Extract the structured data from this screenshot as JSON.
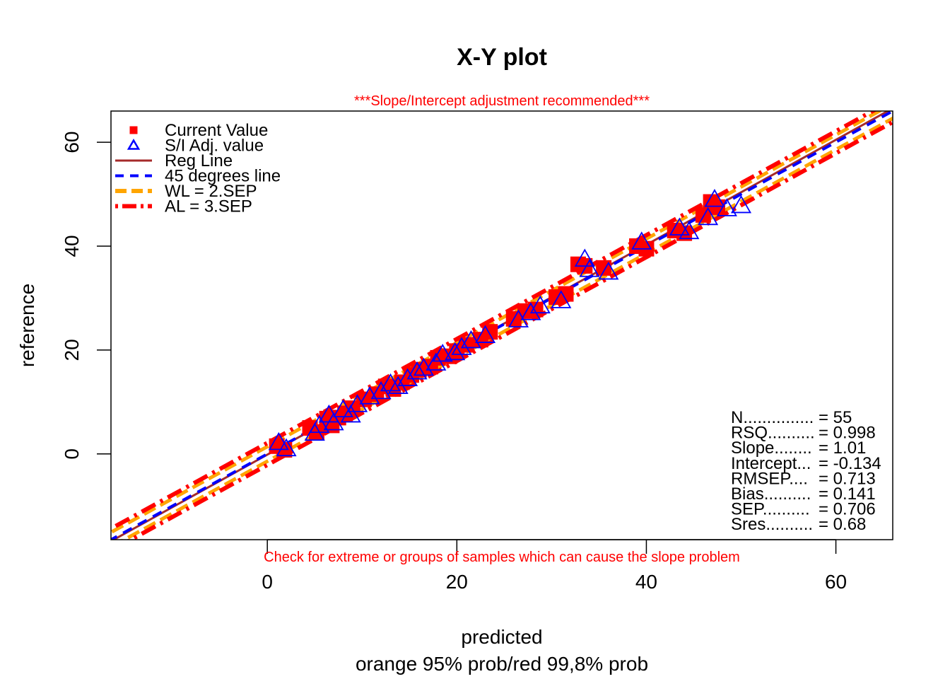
{
  "chart_data": {
    "type": "scatter",
    "title": "X-Y plot",
    "subtitle_top": "***Slope/Intercept adjustment recommended***",
    "subtitle_bottom": "Check for extreme or groups of samples which can cause the slope problem",
    "xlabel": "predicted",
    "xlabel_line2": "orange 95% prob/red 99,8% prob",
    "ylabel": "reference",
    "xlim": [
      -16.5,
      66
    ],
    "ylim": [
      -16.5,
      66
    ],
    "x_ticks": [
      0,
      20,
      40,
      60
    ],
    "y_ticks": [
      0,
      20,
      40,
      60
    ],
    "grid": false,
    "legend_position": "top-left",
    "legend": [
      {
        "label": "Current Value",
        "kind": "square",
        "color": "#ff0000"
      },
      {
        "label": "S/I Adj. value",
        "kind": "triangle",
        "color": "#0000ff"
      },
      {
        "label": "Reg Line",
        "kind": "solid",
        "color": "#a52a2a"
      },
      {
        "label": "45 degrees line",
        "kind": "dashed",
        "color": "#0000ff"
      },
      {
        "label": "WL = 2.SEP",
        "kind": "dashed-thick",
        "color": "#ffa500"
      },
      {
        "label": "AL = 3.SEP",
        "kind": "dotdash-thick",
        "color": "#ff0000"
      }
    ],
    "lines": {
      "reg": {
        "slope": 1.01,
        "intercept": -0.134,
        "color": "#a52a2a"
      },
      "deg45": {
        "slope": 1,
        "intercept": 0,
        "color": "#0000ff"
      },
      "wl_offset": 1.412,
      "al_offset": 2.118,
      "wl_color": "#ffa500",
      "al_color": "#ff0000"
    },
    "stats": [
      {
        "label": "N............... ",
        "value": "= 55"
      },
      {
        "label": "RSQ.......... ",
        "value": "= 0.998"
      },
      {
        "label": "Slope........ ",
        "value": "= 1.01"
      },
      {
        "label": "Intercept... ",
        "value": "= -0.134"
      },
      {
        "label": "RMSEP.... ",
        "value": "= 0.713"
      },
      {
        "label": "Bias.......... ",
        "value": "= 0.141"
      },
      {
        "label": "SEP.......... ",
        "value": "= 0.706"
      },
      {
        "label": "Sres.......... ",
        "value": "= 0.68"
      }
    ],
    "series": [
      {
        "name": "Current Value",
        "marker": "square",
        "color": "#ff0000",
        "points": [
          [
            1.0,
            1.5
          ],
          [
            1.8,
            0.8
          ],
          [
            4.5,
            5.0
          ],
          [
            5.2,
            4.2
          ],
          [
            6.3,
            6.8
          ],
          [
            6.8,
            5.5
          ],
          [
            7.5,
            7.0
          ],
          [
            8.2,
            7.8
          ],
          [
            9.0,
            8.8
          ],
          [
            10.2,
            10.5
          ],
          [
            11.5,
            11.5
          ],
          [
            12.5,
            13.0
          ],
          [
            13.3,
            12.5
          ],
          [
            14.2,
            13.8
          ],
          [
            15.2,
            15.2
          ],
          [
            16.0,
            16.2
          ],
          [
            17.2,
            16.8
          ],
          [
            18.0,
            18.5
          ],
          [
            19.2,
            18.8
          ],
          [
            20.0,
            19.8
          ],
          [
            21.0,
            21.0
          ],
          [
            22.5,
            22.0
          ],
          [
            23.5,
            23.5
          ],
          [
            26.0,
            26.0
          ],
          [
            27.2,
            27.5
          ],
          [
            28.3,
            27.8
          ],
          [
            30.5,
            30.2
          ],
          [
            31.5,
            30.8
          ],
          [
            32.8,
            36.5
          ],
          [
            33.5,
            36.2
          ],
          [
            35.5,
            35.8
          ],
          [
            39.0,
            40.0
          ],
          [
            40.0,
            39.5
          ],
          [
            43.0,
            43.0
          ],
          [
            44.0,
            42.5
          ],
          [
            46.0,
            46.0
          ],
          [
            46.8,
            48.5
          ],
          [
            47.5,
            47.5
          ]
        ]
      },
      {
        "name": "S/I Adj. value",
        "marker": "triangle",
        "color": "#0000ff",
        "points": [
          [
            1.2,
            2.2
          ],
          [
            2.0,
            1.0
          ],
          [
            5.0,
            4.0
          ],
          [
            5.5,
            5.5
          ],
          [
            6.5,
            7.5
          ],
          [
            7.0,
            6.0
          ],
          [
            8.0,
            8.5
          ],
          [
            8.8,
            7.5
          ],
          [
            9.5,
            9.5
          ],
          [
            10.8,
            11.0
          ],
          [
            12.0,
            12.0
          ],
          [
            13.0,
            13.5
          ],
          [
            13.8,
            13.0
          ],
          [
            14.8,
            14.5
          ],
          [
            15.8,
            15.8
          ],
          [
            16.5,
            16.5
          ],
          [
            17.8,
            17.5
          ],
          [
            18.5,
            19.2
          ],
          [
            19.8,
            19.5
          ],
          [
            20.5,
            20.5
          ],
          [
            21.5,
            21.8
          ],
          [
            23.0,
            22.8
          ],
          [
            26.5,
            25.8
          ],
          [
            27.8,
            27.2
          ],
          [
            28.8,
            28.5
          ],
          [
            31.0,
            29.5
          ],
          [
            33.5,
            37.5
          ],
          [
            34.0,
            35.5
          ],
          [
            36.0,
            35.0
          ],
          [
            39.5,
            40.8
          ],
          [
            43.5,
            43.5
          ],
          [
            44.5,
            42.8
          ],
          [
            46.5,
            45.5
          ],
          [
            47.2,
            49.0
          ],
          [
            48.5,
            47.2
          ],
          [
            50.0,
            47.8
          ]
        ]
      }
    ]
  }
}
